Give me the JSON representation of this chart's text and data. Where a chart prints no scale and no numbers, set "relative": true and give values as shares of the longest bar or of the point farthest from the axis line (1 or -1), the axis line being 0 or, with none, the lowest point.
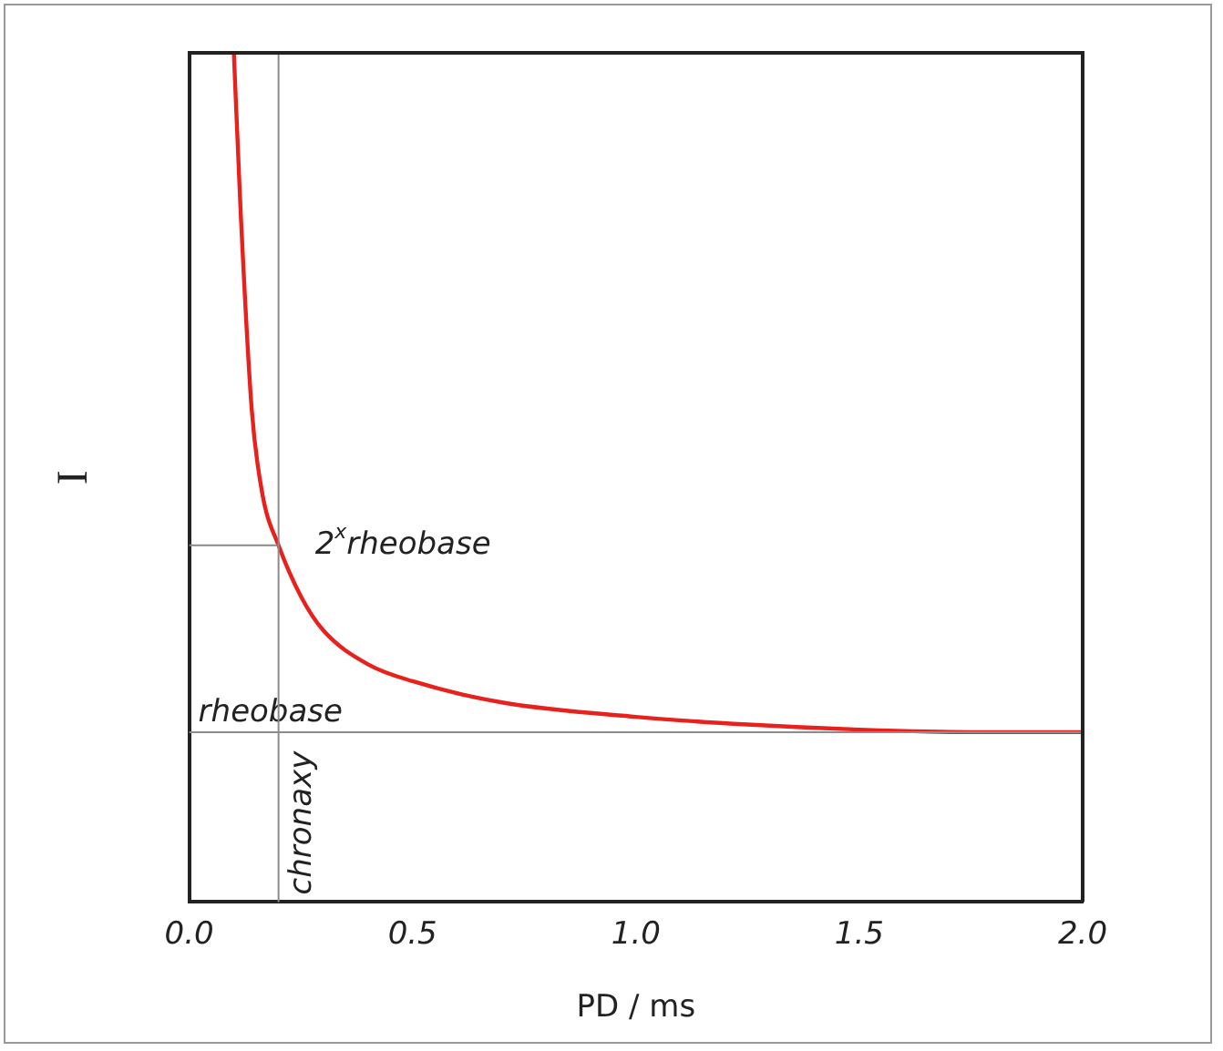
{
  "chart_data": {
    "type": "line",
    "relative": true,
    "xlabel": "PD / ms",
    "ylabel": "I",
    "xlim": [
      0,
      2
    ],
    "xticks": [
      {
        "value": 0,
        "label": "0.0"
      },
      {
        "value": 0.5,
        "label": "0.5"
      },
      {
        "value": 1,
        "label": "1.0"
      },
      {
        "value": 1.5,
        "label": "1.5"
      },
      {
        "value": 2,
        "label": "2.0"
      }
    ],
    "series": [
      {
        "color": "#e8211c",
        "x": [
          0.1,
          0.115,
          0.14,
          0.164,
          0.2,
          0.25,
          0.3,
          0.4,
          0.5,
          0.7,
          1.0,
          1.25,
          1.5,
          1.75,
          2.0
        ],
        "values": [
          1.0,
          0.815,
          0.58,
          0.48,
          0.42,
          0.36,
          0.32,
          0.28,
          0.26,
          0.235,
          0.218,
          0.209,
          0.203,
          0.2,
          0.2
        ]
      }
    ],
    "ref_lines": [
      {
        "axis": "y",
        "value": 0.2,
        "label": "rheobase",
        "color": "#8c8c8c"
      },
      {
        "axis": "x",
        "value": 0.2,
        "label": "chronaxy",
        "color": "#8c8c8c"
      }
    ],
    "annotations": [
      {
        "text": "2$^{x}$rheobase",
        "x": 0.2,
        "y": 0.42
      }
    ],
    "grid": false,
    "legend": false,
    "marker": "none",
    "line_style": "solid"
  }
}
